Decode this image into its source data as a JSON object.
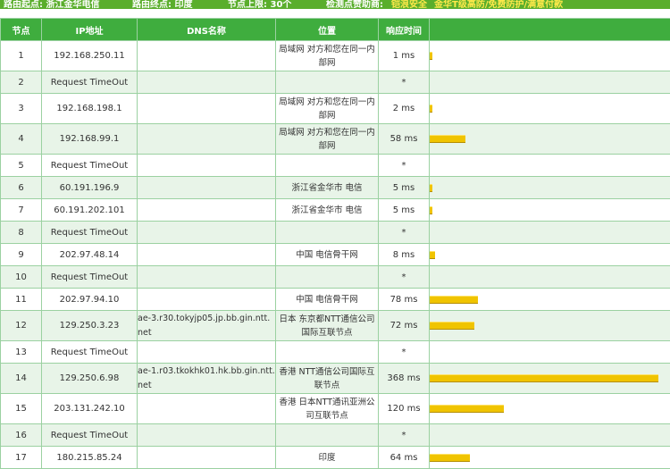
{
  "header_bar": {
    "start_label": "路由起点: 浙江金华电信",
    "end_label": "路由终点: 印度",
    "limit_label": "节点上限: 30个",
    "sponsor_label": "检测点赞助商:",
    "sponsor_highlight": "铠浪安全",
    "sponsor_detail": "金华T级高防/免费防护/满意付款"
  },
  "table": {
    "columns": [
      "节点",
      "IP地址",
      "DNS名称",
      "位置",
      "响应时间",
      ""
    ],
    "rows": [
      {
        "hop": "1",
        "ip": "192.168.250.11",
        "dns": "",
        "loc": "局域网 对方和您在同一内部网",
        "time": "1 ms",
        "ms": 1
      },
      {
        "hop": "2",
        "ip": "Request TimeOut",
        "dns": "",
        "loc": "",
        "time": "*",
        "ms": 0
      },
      {
        "hop": "3",
        "ip": "192.168.198.1",
        "dns": "",
        "loc": "局域网 对方和您在同一内部网",
        "time": "2 ms",
        "ms": 2
      },
      {
        "hop": "4",
        "ip": "192.168.99.1",
        "dns": "",
        "loc": "局域网 对方和您在同一内部网",
        "time": "58 ms",
        "ms": 58
      },
      {
        "hop": "5",
        "ip": "Request TimeOut",
        "dns": "",
        "loc": "",
        "time": "*",
        "ms": 0
      },
      {
        "hop": "6",
        "ip": "60.191.196.9",
        "dns": "",
        "loc": "浙江省金华市 电信",
        "time": "5 ms",
        "ms": 5
      },
      {
        "hop": "7",
        "ip": "60.191.202.101",
        "dns": "",
        "loc": "浙江省金华市 电信",
        "time": "5 ms",
        "ms": 5
      },
      {
        "hop": "8",
        "ip": "Request TimeOut",
        "dns": "",
        "loc": "",
        "time": "*",
        "ms": 0
      },
      {
        "hop": "9",
        "ip": "202.97.48.14",
        "dns": "",
        "loc": "中国 电信骨干网",
        "time": "8 ms",
        "ms": 8
      },
      {
        "hop": "10",
        "ip": "Request TimeOut",
        "dns": "",
        "loc": "",
        "time": "*",
        "ms": 0
      },
      {
        "hop": "11",
        "ip": "202.97.94.10",
        "dns": "",
        "loc": "中国 电信骨干网",
        "time": "78 ms",
        "ms": 78
      },
      {
        "hop": "12",
        "ip": "129.250.3.23",
        "dns": "ae-3.r30.tokyjp05.jp.bb.gin.ntt.net",
        "loc": "日本 东京都NTT通信公司国际互联节点",
        "time": "72 ms",
        "ms": 72
      },
      {
        "hop": "13",
        "ip": "Request TimeOut",
        "dns": "",
        "loc": "",
        "time": "*",
        "ms": 0
      },
      {
        "hop": "14",
        "ip": "129.250.6.98",
        "dns": "ae-1.r03.tkokhk01.hk.bb.gin.ntt.net",
        "loc": "香港 NTT通信公司国际互联节点",
        "time": "368 ms",
        "ms": 368
      },
      {
        "hop": "15",
        "ip": "203.131.242.10",
        "dns": "",
        "loc": "香港 日本NTT通讯亚洲公司互联节点",
        "time": "120 ms",
        "ms": 120
      },
      {
        "hop": "16",
        "ip": "Request TimeOut",
        "dns": "",
        "loc": "",
        "time": "*",
        "ms": 0
      },
      {
        "hop": "17",
        "ip": "180.215.85.24",
        "dns": "",
        "loc": "印度",
        "time": "64 ms",
        "ms": 64
      }
    ]
  },
  "colors": {
    "header_green": "#3fad3e",
    "bar_yellow": "#f0c400",
    "row_alt": "#e8f4e8"
  }
}
